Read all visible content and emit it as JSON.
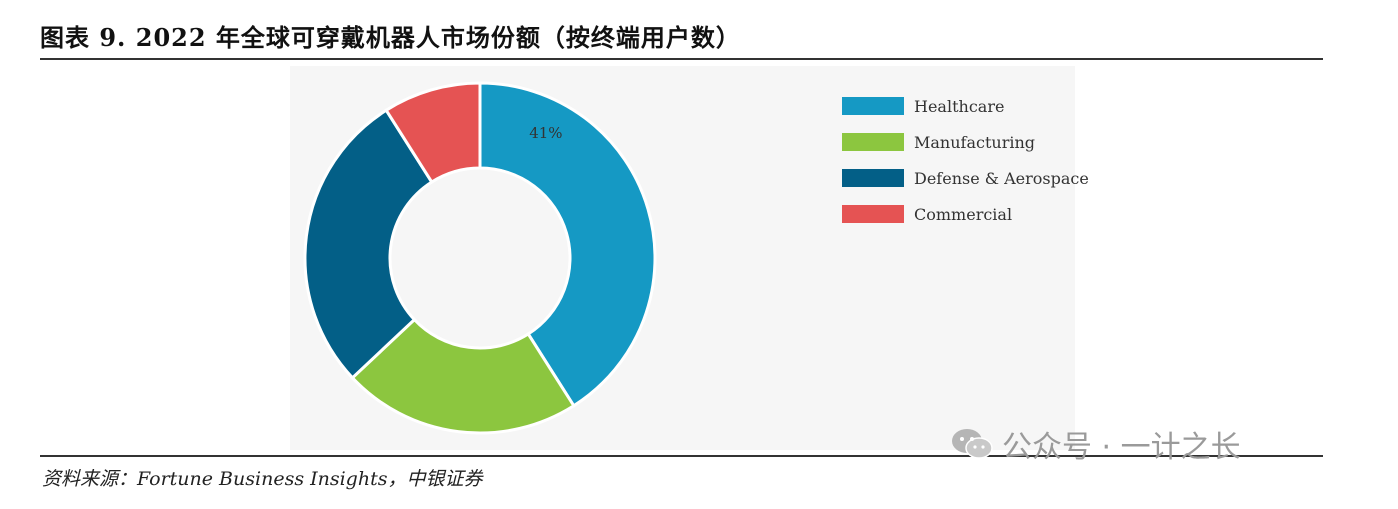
{
  "title": "图表 9. 2022 年全球可穿戴机器人市场份额（按终端用户数）",
  "source": "资料来源：Fortune Business Insights，中银证券",
  "watermark": "公众号 · 一计之长",
  "watermark_icon": "wechat-icon",
  "chart_data": {
    "type": "pie",
    "style": "donut",
    "categories": [
      "Healthcare",
      "Manufacturing",
      "Defense & Aerospace",
      "Commercial"
    ],
    "values": [
      41,
      22,
      28,
      9
    ],
    "colors": [
      "#1599c4",
      "#8cc63f",
      "#035f87",
      "#e55353"
    ],
    "data_labels": [
      "41%",
      "",
      "",
      ""
    ],
    "legend_position": "right"
  }
}
